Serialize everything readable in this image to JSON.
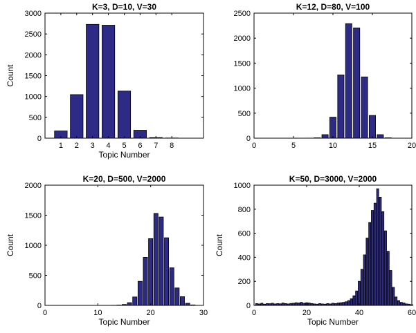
{
  "chart_data": [
    {
      "type": "bar",
      "title": "K=3, D=10, V=30",
      "xlabel": "Topic Number",
      "ylabel": "Count",
      "xlim": [
        0,
        10
      ],
      "ylim": [
        0,
        3000
      ],
      "xticks": [
        1,
        2,
        3,
        4,
        5,
        6,
        7,
        8
      ],
      "yticks": [
        0,
        500,
        1000,
        1500,
        2000,
        2500,
        3000
      ],
      "bar_color": "#2e2b86",
      "x": [
        1,
        2,
        3,
        4,
        5,
        6,
        7,
        8
      ],
      "values": [
        175,
        1045,
        2730,
        2710,
        1130,
        190,
        15,
        5
      ]
    },
    {
      "type": "bar",
      "title": "K=12, D=80, V=100",
      "xlabel": "",
      "ylabel": "",
      "xlim": [
        0,
        20
      ],
      "ylim": [
        0,
        2500
      ],
      "xticks": [
        0,
        5,
        10,
        15,
        20
      ],
      "yticks": [
        0,
        500,
        1000,
        1500,
        2000,
        2500
      ],
      "bar_color": "#2e2b86",
      "x": [
        1,
        2,
        3,
        4,
        5,
        6,
        7,
        8,
        9,
        10,
        11,
        12,
        13,
        14,
        15,
        16,
        17
      ],
      "values": [
        0,
        0,
        0,
        0,
        0,
        0,
        2,
        8,
        70,
        420,
        1265,
        2290,
        2205,
        1225,
        455,
        70,
        8
      ]
    },
    {
      "type": "bar",
      "title": "K=20, D=500, V=2000",
      "xlabel": "Topic Number",
      "ylabel": "Count",
      "xlim": [
        0,
        30
      ],
      "ylim": [
        0,
        2000
      ],
      "xticks": [
        0,
        10,
        20,
        30
      ],
      "yticks": [
        0,
        500,
        1000,
        1500,
        2000
      ],
      "bar_color": "#2e2b86",
      "x": [
        1,
        2,
        3,
        4,
        5,
        6,
        7,
        8,
        9,
        10,
        11,
        12,
        13,
        14,
        15,
        16,
        17,
        18,
        19,
        20,
        21,
        22,
        23,
        24,
        25,
        26,
        27,
        28
      ],
      "values": [
        0,
        0,
        0,
        0,
        0,
        0,
        0,
        0,
        0,
        0,
        0,
        0,
        2,
        5,
        15,
        45,
        140,
        400,
        800,
        1110,
        1530,
        1470,
        1125,
        625,
        290,
        145,
        35,
        8
      ]
    },
    {
      "type": "bar",
      "title": "K=50, D=3000, V=2000",
      "xlabel": "Topic Number",
      "ylabel": "Count",
      "xlim": [
        0,
        60
      ],
      "ylim": [
        0,
        1000
      ],
      "xticks": [
        0,
        20,
        40,
        60
      ],
      "yticks": [
        0,
        200,
        400,
        600,
        800,
        1000
      ],
      "bar_color": "#2e2b86",
      "x": [
        1,
        2,
        3,
        4,
        5,
        6,
        7,
        8,
        9,
        10,
        11,
        12,
        13,
        14,
        15,
        16,
        17,
        18,
        19,
        20,
        21,
        22,
        23,
        24,
        25,
        26,
        27,
        28,
        29,
        30,
        31,
        32,
        33,
        34,
        35,
        36,
        37,
        38,
        39,
        40,
        41,
        42,
        43,
        44,
        45,
        46,
        47,
        48,
        49,
        50,
        51,
        52,
        53,
        54,
        55,
        56,
        57,
        58,
        59,
        60
      ],
      "values": [
        15,
        12,
        18,
        10,
        15,
        14,
        18,
        12,
        15,
        13,
        20,
        15,
        12,
        16,
        18,
        22,
        20,
        25,
        18,
        22,
        20,
        15,
        12,
        10,
        15,
        12,
        10,
        15,
        12,
        18,
        15,
        20,
        22,
        25,
        30,
        40,
        55,
        80,
        120,
        200,
        300,
        420,
        560,
        690,
        790,
        850,
        970,
        900,
        780,
        620,
        450,
        290,
        150,
        70,
        40,
        25,
        20,
        12,
        10,
        5
      ]
    }
  ]
}
